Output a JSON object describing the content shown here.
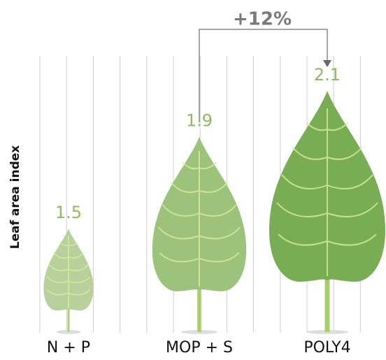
{
  "chart_data": {
    "type": "leaf",
    "y_label": "Leaf area index",
    "annotation": "+12%",
    "categories": [
      "N + P",
      "MOP + S",
      "POLY4"
    ],
    "values": [
      1.5,
      1.9,
      2.1
    ],
    "colors": [
      "#b7d09c",
      "#9dc27b",
      "#79ad55"
    ]
  }
}
